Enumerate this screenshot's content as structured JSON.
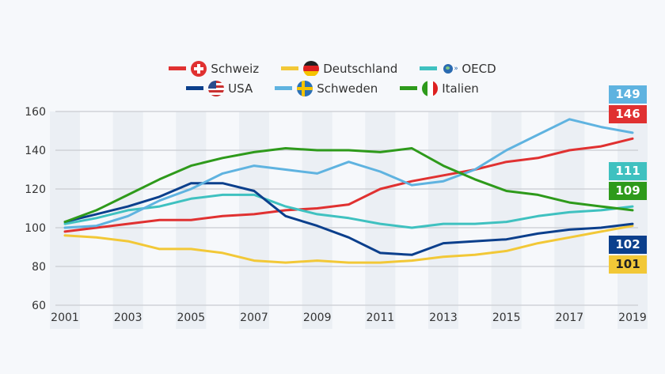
{
  "chart_data": {
    "type": "line",
    "title": "",
    "xlabel": "",
    "ylabel": "",
    "x": [
      2001,
      2002,
      2003,
      2004,
      2005,
      2006,
      2007,
      2008,
      2009,
      2010,
      2011,
      2012,
      2013,
      2014,
      2015,
      2016,
      2017,
      2018,
      2019
    ],
    "x_tick_labels": [
      "2001",
      "2003",
      "2005",
      "2007",
      "2009",
      "2011",
      "2013",
      "2015",
      "2017",
      "2019"
    ],
    "y_tick_labels": [
      "60",
      "80",
      "100",
      "120",
      "140",
      "160"
    ],
    "ylim": [
      60,
      160
    ],
    "grid": true,
    "legend_position": "top-center",
    "series": [
      {
        "name": "Schweiz",
        "color": "#e03131",
        "flag": "ch",
        "end_label": "146",
        "values": [
          98,
          100,
          102,
          104,
          104,
          106,
          107,
          109,
          110,
          112,
          120,
          124,
          127,
          130,
          134,
          136,
          140,
          142,
          146
        ]
      },
      {
        "name": "Deutschland",
        "color": "#f2c837",
        "flag": "de",
        "end_label": "101",
        "values": [
          96,
          95,
          93,
          89,
          89,
          87,
          83,
          82,
          83,
          82,
          82,
          83,
          85,
          86,
          88,
          92,
          95,
          98,
          101
        ]
      },
      {
        "name": "OECD",
        "color": "#3fc1c0",
        "flag": "oecd",
        "end_label": "111",
        "values": [
          102,
          105,
          109,
          111,
          115,
          117,
          117,
          111,
          107,
          105,
          102,
          100,
          102,
          102,
          103,
          106,
          108,
          109,
          111
        ]
      },
      {
        "name": "USA",
        "color": "#0b3f8c",
        "flag": "us",
        "end_label": "102",
        "values": [
          103,
          107,
          111,
          116,
          123,
          123,
          119,
          106,
          101,
          95,
          87,
          86,
          92,
          93,
          94,
          97,
          99,
          100,
          102
        ]
      },
      {
        "name": "Schweden",
        "color": "#5fb3e0",
        "flag": "se",
        "end_label": "149",
        "values": [
          100,
          101,
          106,
          114,
          120,
          128,
          132,
          130,
          128,
          134,
          129,
          122,
          124,
          130,
          140,
          148,
          156,
          152,
          149
        ]
      },
      {
        "name": "Italien",
        "color": "#2e9a1b",
        "flag": "it",
        "end_label": "109",
        "values": [
          103,
          109,
          117,
          125,
          132,
          136,
          139,
          141,
          140,
          140,
          139,
          141,
          132,
          125,
          119,
          117,
          113,
          111,
          109
        ]
      }
    ],
    "end_labels": [
      {
        "series": "Schweden",
        "text": "149",
        "bg": "#5fb3e0",
        "fg": "#ffffff"
      },
      {
        "series": "Schweiz",
        "text": "146",
        "bg": "#e03131",
        "fg": "#ffffff"
      },
      {
        "series": "OECD",
        "text": "111",
        "bg": "#3fc1c0",
        "fg": "#ffffff"
      },
      {
        "series": "Italien",
        "text": "109",
        "bg": "#2e9a1b",
        "fg": "#ffffff"
      },
      {
        "series": "USA",
        "text": "102",
        "bg": "#0b3f8c",
        "fg": "#ffffff"
      },
      {
        "series": "Deutschland",
        "text": "101",
        "bg": "#f2c837",
        "fg": "#222222"
      }
    ]
  },
  "legend": {
    "rows": [
      [
        "Schweiz",
        "Deutschland",
        "OECD"
      ],
      [
        "USA",
        "Schweden",
        "Italien"
      ]
    ]
  }
}
